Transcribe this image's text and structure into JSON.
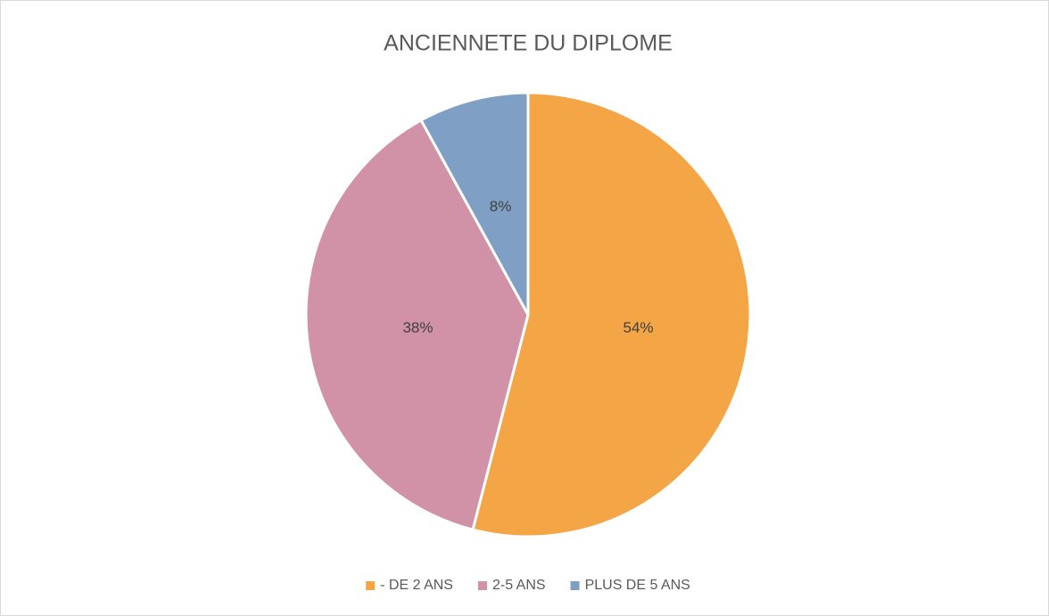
{
  "chart_data": {
    "type": "pie",
    "title": "ANCIENNETE DU DIPLOME",
    "categories": [
      "- DE 2 ANS",
      "2-5 ANS",
      "PLUS DE 5 ANS"
    ],
    "values": [
      54,
      38,
      8
    ],
    "value_labels": [
      "54%",
      "38%",
      "8%"
    ],
    "colors": [
      "#f4a546",
      "#d191a6",
      "#7fa0c4"
    ],
    "legend": "bottom"
  }
}
